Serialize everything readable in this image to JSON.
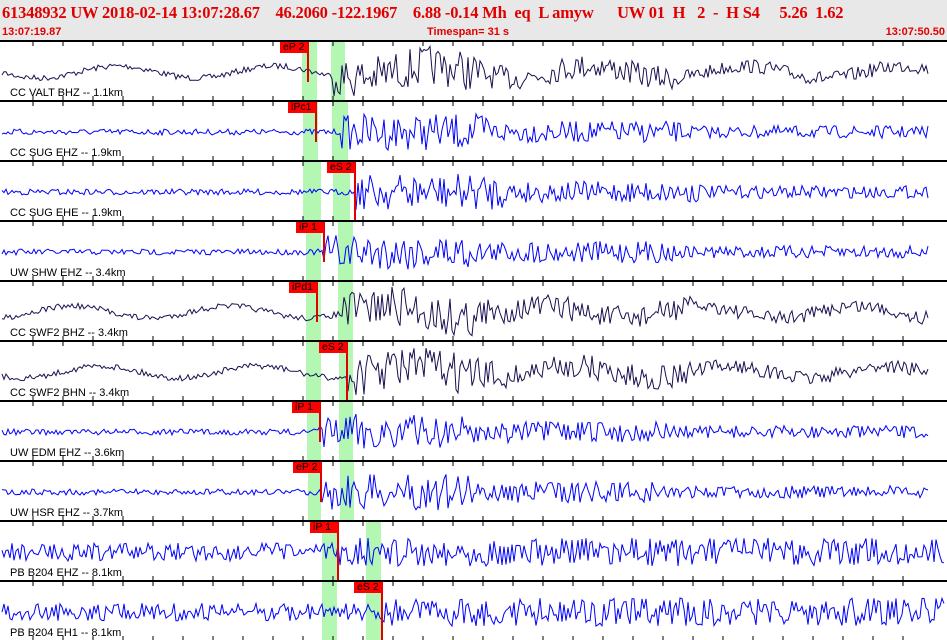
{
  "header": {
    "title": "61348932 UW 2018-02-14 13:07:28.67    46.2060 -122.1967    6.88 -0.14 Mh  eq  L amyw      UW 01  H   2  -  H S4     5.26  1.62",
    "start_time": "13:07:19.87",
    "timespan": "Timespan=  31 s",
    "end_time": "13:07:50.50"
  },
  "colors": {
    "header_text": "#e00000",
    "trace_dark": "#1a1050",
    "trace_blue": "#0000ff",
    "pick": "#ff0000",
    "window": "#b3f7b3"
  },
  "channels": [
    {
      "label": "CC VALT BHZ -- 1.1km",
      "color": "#1a1050",
      "pick": "eP 2",
      "pick_time_s": 13.4,
      "onset_s": 15.0
    },
    {
      "label": "CC SUG EHZ -- 1.9km",
      "color": "#0000ff",
      "pick": "iPc1",
      "pick_time_s": 13.7,
      "onset_s": 15.0
    },
    {
      "label": "CC SUG EHE -- 1.9km",
      "color": "#0000ff",
      "pick": "eS 2",
      "pick_time_s": 15.0,
      "onset_s": 15.2
    },
    {
      "label": "UW SHW EHZ -- 3.4km",
      "color": "#0000ff",
      "pick": "iP 1",
      "pick_time_s": 13.9,
      "onset_s": 14.0
    },
    {
      "label": "CC SWF2 BHZ -- 3.4km",
      "color": "#1a1050",
      "pick": "iPd1",
      "pick_time_s": 13.7,
      "onset_s": 15.0
    },
    {
      "label": "CC SWF2 BHN -- 3.4km",
      "color": "#1a1050",
      "pick": "eS 2",
      "pick_time_s": 14.7,
      "onset_s": 14.7
    },
    {
      "label": "UW EDM EHZ -- 3.6km",
      "color": "#0000ff",
      "pick": "iP 1",
      "pick_time_s": 13.8,
      "onset_s": 14.0
    },
    {
      "label": "UW HSR EHZ -- 3.7km",
      "color": "#0000ff",
      "pick": "eP 2",
      "pick_time_s": 13.9,
      "onset_s": 14.0
    },
    {
      "label": "PB B204 EHZ -- 8.1km",
      "color": "#0000ff",
      "pick": "iP 1",
      "pick_time_s": 14.4,
      "onset_s": 14.4
    },
    {
      "label": "PB B204 EH1 -- 8.1km",
      "color": "#0000ff",
      "pick": "eS 2",
      "pick_time_s": 15.8,
      "onset_s": 15.8
    }
  ]
}
